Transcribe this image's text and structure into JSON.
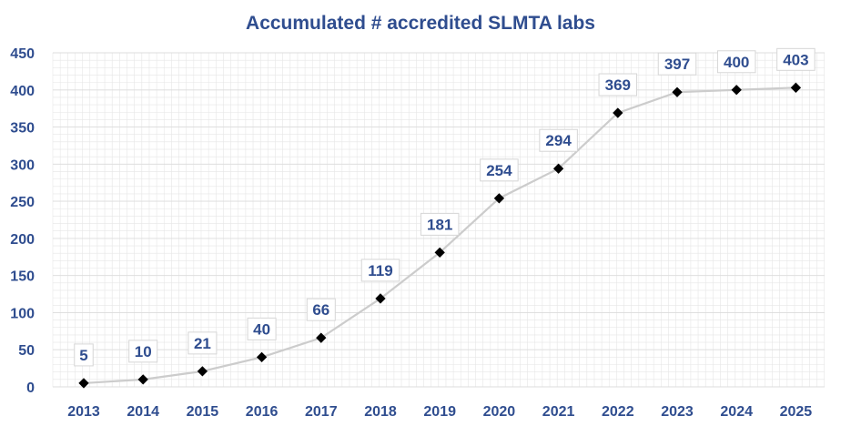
{
  "chart_data": {
    "type": "line",
    "title": "Accumulated # accredited SLMTA labs",
    "xlabel": "",
    "ylabel": "",
    "categories": [
      "2013",
      "2014",
      "2015",
      "2016",
      "2017",
      "2018",
      "2019",
      "2020",
      "2021",
      "2022",
      "2023",
      "2024",
      "2025"
    ],
    "series": [
      {
        "values": [
          5,
          10,
          21,
          40,
          66,
          119,
          181,
          254,
          294,
          369,
          397,
          400,
          403
        ]
      }
    ],
    "ylim": [
      0,
      450
    ],
    "yticks": [
      0,
      50,
      100,
      150,
      200,
      250,
      300,
      350,
      400,
      450
    ],
    "grid": true,
    "legend": "none",
    "colors": {
      "line": "#cccccc",
      "marker": "#000000",
      "text": "#2f4d8f",
      "grid": "#e6e6e6",
      "label_box_border": "#d6d6d6"
    }
  }
}
